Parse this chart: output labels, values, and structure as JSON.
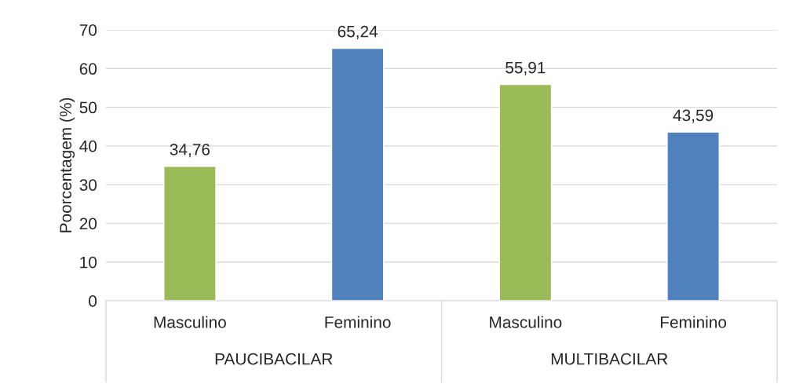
{
  "chart_data": {
    "type": "bar",
    "ylabel": "Poorcentagem (%)",
    "categories": [
      "Masculino",
      "Feminino",
      "Masculino",
      "Feminino"
    ],
    "values": [
      34.76,
      65.24,
      55.91,
      43.59
    ],
    "colors": [
      "#9bbb59",
      "#4f81bd",
      "#9bbb59",
      "#4f81bd"
    ],
    "value_labels": [
      "34,76",
      "65,24",
      "55,91",
      "43,59"
    ],
    "annotations": [
      "PAUCIBACILAR",
      "MULTIBACILAR"
    ],
    "ylim": [
      0,
      70
    ],
    "yticks": [
      0,
      10,
      20,
      30,
      40,
      50,
      60,
      70
    ],
    "grid": "y"
  }
}
